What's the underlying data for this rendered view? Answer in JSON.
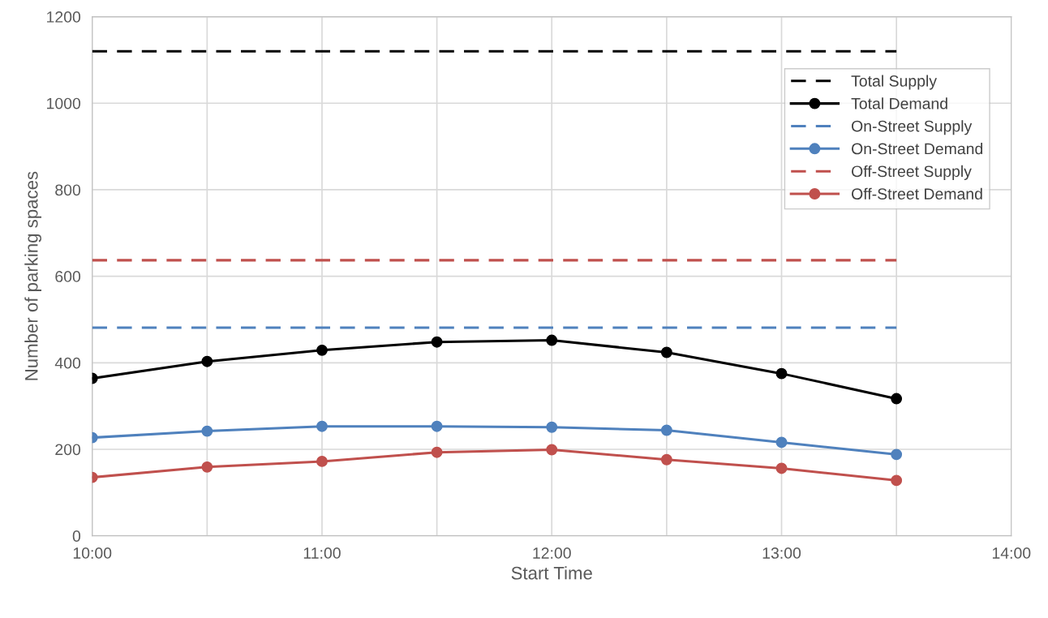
{
  "chart_data": {
    "type": "line",
    "xlabel": "Start Time",
    "ylabel": "Number of parking spaces",
    "x": [
      10,
      10.5,
      11,
      11.5,
      12,
      12.5,
      13,
      13.5
    ],
    "series": [
      {
        "name": "Total Supply",
        "color": "#000000",
        "line_style": "dashed",
        "marker": "none",
        "values": [
          1120,
          1120,
          1120,
          1120,
          1120,
          1120,
          1120,
          1120
        ]
      },
      {
        "name": "Total Demand",
        "color": "#000000",
        "line_style": "solid",
        "marker": "circle",
        "values": [
          364,
          403,
          429,
          448,
          452,
          424,
          375,
          317
        ]
      },
      {
        "name": "On-Street Supply",
        "color": "#4f81bd",
        "line_style": "dashed",
        "marker": "none",
        "values": [
          481,
          481,
          481,
          481,
          481,
          481,
          481,
          481
        ]
      },
      {
        "name": "On-Street Demand",
        "color": "#4f81bd",
        "line_style": "solid",
        "marker": "circle",
        "values": [
          227,
          242,
          253,
          253,
          251,
          244,
          216,
          188
        ]
      },
      {
        "name": "Off-Street Supply",
        "color": "#c0504d",
        "line_style": "dashed",
        "marker": "none",
        "values": [
          637,
          637,
          637,
          637,
          637,
          637,
          637,
          637
        ]
      },
      {
        "name": "Off-Street Demand",
        "color": "#c0504d",
        "line_style": "solid",
        "marker": "circle",
        "values": [
          135,
          159,
          172,
          193,
          199,
          176,
          156,
          128
        ]
      }
    ],
    "xlim": [
      10,
      14
    ],
    "xticks": [
      {
        "value": 10,
        "label": "10:00"
      },
      {
        "value": 10.5,
        "label": null
      },
      {
        "value": 11,
        "label": "11:00"
      },
      {
        "value": 11.5,
        "label": null
      },
      {
        "value": 12,
        "label": "12:00"
      },
      {
        "value": 12.5,
        "label": null
      },
      {
        "value": 13,
        "label": "13:00"
      },
      {
        "value": 13.5,
        "label": null
      },
      {
        "value": 14,
        "label": "14:00"
      }
    ],
    "ylim": [
      0,
      1200
    ],
    "yticks": [
      0,
      200,
      400,
      600,
      800,
      1000,
      1200
    ],
    "grid": true,
    "legend": "top right"
  }
}
